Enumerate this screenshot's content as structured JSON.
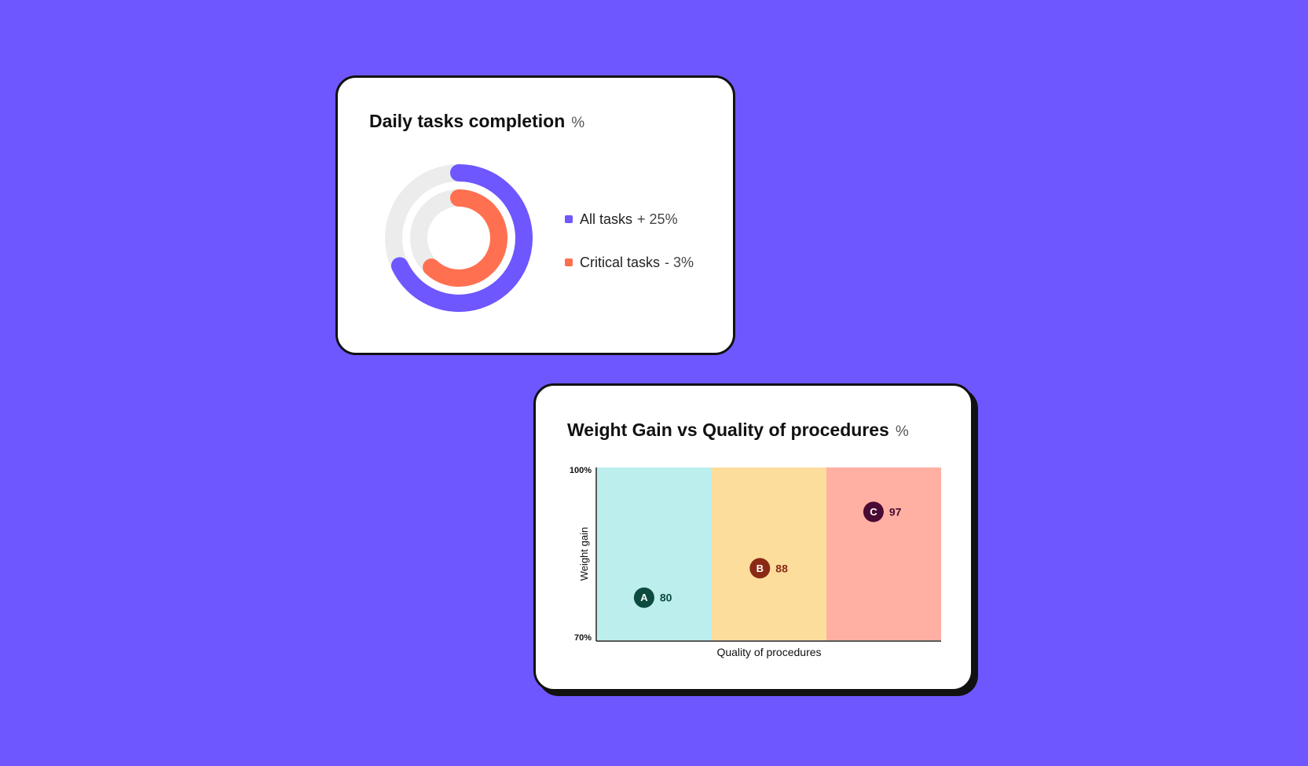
{
  "colors": {
    "background": "#6e57ff",
    "all_tasks": "#6e57ff",
    "critical_tasks": "#ff7050",
    "track": "#ececec"
  },
  "donut_card": {
    "title": "Daily tasks completion",
    "unit": "%"
  },
  "matrix_card": {
    "title": "Weight Gain vs Quality of procedures",
    "unit": "%"
  },
  "chart_data": [
    {
      "type": "pie",
      "variant": "radial-progress",
      "series": [
        {
          "name": "All tasks",
          "delta": "+ 25%",
          "fraction": 0.68,
          "color": "#6e57ff"
        },
        {
          "name": "Critical tasks",
          "delta": "- 3%",
          "fraction": 0.62,
          "color": "#ff7050"
        }
      ]
    },
    {
      "type": "scatter",
      "xlabel": "Quality of procedures",
      "ylabel": "Weight gain",
      "y_ticks": [
        "100%",
        "70%"
      ],
      "ylim": [
        70,
        100
      ],
      "zones": [
        {
          "color": "#bbeeed"
        },
        {
          "color": "#fcdd9c"
        },
        {
          "color": "#ffb0a3"
        }
      ],
      "points": [
        {
          "label": "A",
          "value": 80,
          "zone": 0,
          "x": 0.41,
          "y": 77.4,
          "color": "#0d4a40",
          "text_color": "#0d4a40"
        },
        {
          "label": "B",
          "value": 88,
          "zone": 1,
          "x": 0.42,
          "y": 82.5,
          "color": "#8a2a14",
          "text_color": "#8a2a14"
        },
        {
          "label": "C",
          "value": 97,
          "zone": 2,
          "x": 0.41,
          "y": 92.3,
          "color": "#4a0a33",
          "text_color": "#4a0a33"
        }
      ]
    }
  ]
}
